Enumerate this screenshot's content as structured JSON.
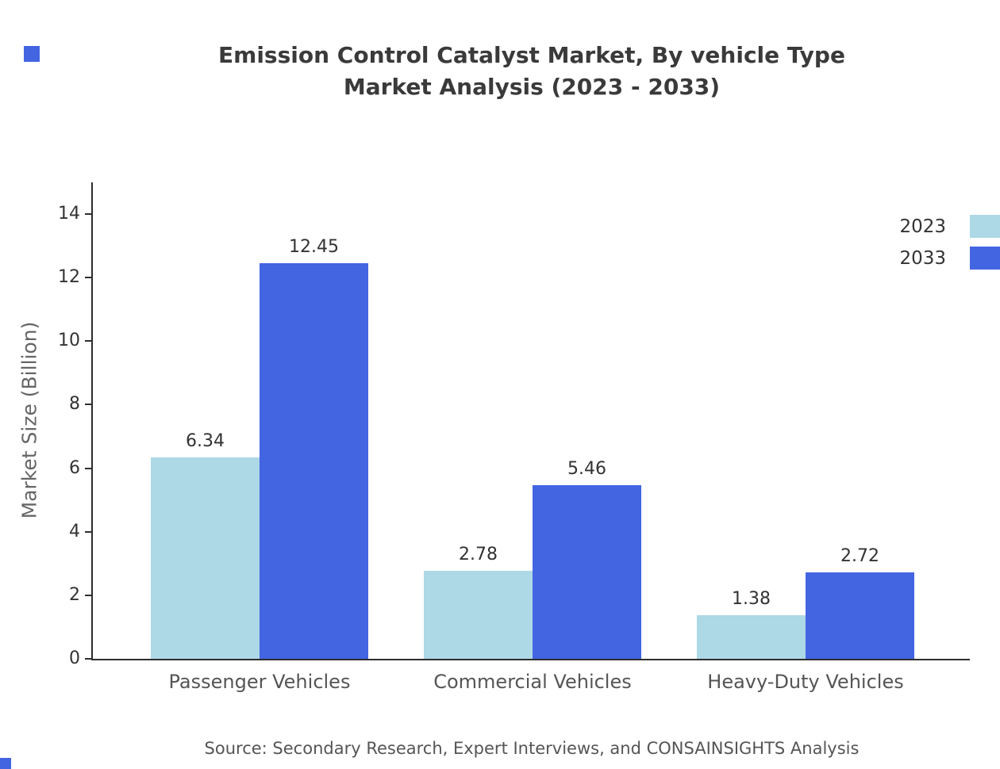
{
  "header": {
    "title_line1": "Emission Control Catalyst Market, By vehicle Type",
    "title_line2": "Market Analysis (2023 - 2033)"
  },
  "footer": {
    "source": "Source: Secondary Research, Expert Interviews, and CONSAINSIGHTS Analysis"
  },
  "colors": {
    "series_2023": "#add8e6",
    "series_2033": "#4365e2",
    "brand": "#4365e2",
    "axis": "#2e2e2e"
  },
  "chart_data": {
    "type": "bar",
    "title": "Emission Control Catalyst Market, By vehicle Type Market Analysis (2023 - 2033)",
    "categories": [
      "Passenger Vehicles",
      "Commercial Vehicles",
      "Heavy-Duty Vehicles"
    ],
    "series": [
      {
        "name": "2023",
        "color": "#add8e6",
        "values": [
          6.34,
          2.78,
          1.38
        ]
      },
      {
        "name": "2033",
        "color": "#4365e2",
        "values": [
          12.45,
          5.46,
          2.72
        ]
      }
    ],
    "xlabel": "",
    "ylabel": "Market Size (Billion)",
    "ylim": [
      0,
      15
    ],
    "yticks": [
      0,
      2,
      4,
      6,
      8,
      10,
      12,
      14
    ],
    "grid": false,
    "legend_position": "top-right"
  }
}
